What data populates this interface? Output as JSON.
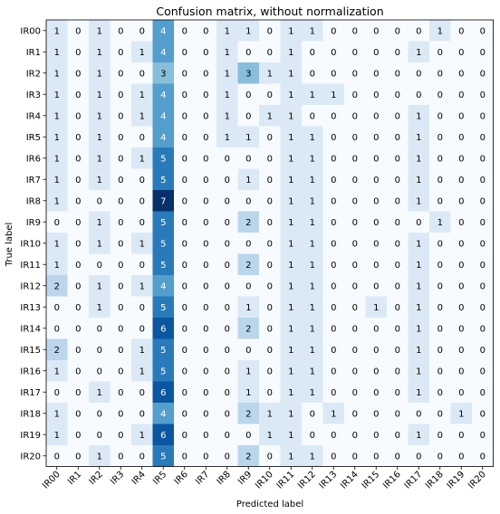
{
  "chart_data": {
    "type": "heatmap",
    "title": "Confusion matrix, without normalization",
    "xlabel": "Predicted label",
    "ylabel": "True label",
    "labels": [
      "IR00",
      "IR1",
      "IR2",
      "IR3",
      "IR4",
      "IR5",
      "IR6",
      "IR7",
      "IR8",
      "IR9",
      "IR10",
      "IR11",
      "IR12",
      "IR13",
      "IR14",
      "IR15",
      "IR16",
      "IR17",
      "IR18",
      "IR19",
      "IR20"
    ],
    "colormap": "Blues",
    "vmin": 0,
    "vmax": 7,
    "matrix": [
      [
        1,
        0,
        1,
        0,
        0,
        4,
        0,
        0,
        1,
        1,
        0,
        1,
        1,
        0,
        0,
        0,
        0,
        0,
        1,
        0,
        0
      ],
      [
        1,
        0,
        1,
        0,
        1,
        4,
        0,
        0,
        1,
        0,
        0,
        1,
        0,
        0,
        0,
        0,
        0,
        1,
        0,
        0,
        0
      ],
      [
        1,
        0,
        1,
        0,
        0,
        3,
        0,
        0,
        1,
        3,
        1,
        1,
        0,
        0,
        0,
        0,
        0,
        0,
        0,
        0,
        0
      ],
      [
        1,
        0,
        1,
        0,
        1,
        4,
        0,
        0,
        1,
        0,
        0,
        1,
        1,
        1,
        0,
        0,
        0,
        0,
        0,
        0,
        0
      ],
      [
        1,
        0,
        1,
        0,
        1,
        4,
        0,
        0,
        1,
        0,
        1,
        1,
        0,
        0,
        0,
        0,
        0,
        1,
        0,
        0,
        0
      ],
      [
        1,
        0,
        1,
        0,
        0,
        4,
        0,
        0,
        1,
        1,
        0,
        1,
        1,
        0,
        0,
        0,
        0,
        1,
        0,
        0,
        0
      ],
      [
        1,
        0,
        1,
        0,
        1,
        5,
        0,
        0,
        0,
        0,
        0,
        1,
        1,
        0,
        0,
        0,
        0,
        1,
        0,
        0,
        0
      ],
      [
        1,
        0,
        1,
        0,
        0,
        5,
        0,
        0,
        0,
        1,
        0,
        1,
        1,
        0,
        0,
        0,
        0,
        1,
        0,
        0,
        0
      ],
      [
        1,
        0,
        0,
        0,
        0,
        7,
        0,
        0,
        0,
        0,
        0,
        1,
        1,
        0,
        0,
        0,
        0,
        1,
        0,
        0,
        0
      ],
      [
        0,
        0,
        1,
        0,
        0,
        5,
        0,
        0,
        0,
        2,
        0,
        1,
        1,
        0,
        0,
        0,
        0,
        0,
        1,
        0,
        0
      ],
      [
        1,
        0,
        1,
        0,
        1,
        5,
        0,
        0,
        0,
        0,
        0,
        1,
        1,
        0,
        0,
        0,
        0,
        1,
        0,
        0,
        0
      ],
      [
        1,
        0,
        0,
        0,
        0,
        5,
        0,
        0,
        0,
        2,
        0,
        1,
        1,
        0,
        0,
        0,
        0,
        1,
        0,
        0,
        0
      ],
      [
        2,
        0,
        1,
        0,
        1,
        4,
        0,
        0,
        0,
        0,
        0,
        1,
        1,
        0,
        0,
        0,
        0,
        1,
        0,
        0,
        0
      ],
      [
        0,
        0,
        1,
        0,
        0,
        5,
        0,
        0,
        0,
        1,
        0,
        1,
        1,
        0,
        0,
        1,
        0,
        1,
        0,
        0,
        0
      ],
      [
        0,
        0,
        0,
        0,
        0,
        6,
        0,
        0,
        0,
        2,
        0,
        1,
        1,
        0,
        0,
        0,
        0,
        1,
        0,
        0,
        0
      ],
      [
        2,
        0,
        0,
        0,
        1,
        5,
        0,
        0,
        0,
        0,
        0,
        1,
        1,
        0,
        0,
        0,
        0,
        1,
        0,
        0,
        0
      ],
      [
        1,
        0,
        0,
        0,
        1,
        5,
        0,
        0,
        0,
        1,
        0,
        1,
        1,
        0,
        0,
        0,
        0,
        1,
        0,
        0,
        0
      ],
      [
        0,
        0,
        1,
        0,
        0,
        6,
        0,
        0,
        0,
        1,
        0,
        1,
        1,
        0,
        0,
        0,
        0,
        1,
        0,
        0,
        0
      ],
      [
        1,
        0,
        0,
        0,
        0,
        4,
        0,
        0,
        0,
        2,
        1,
        1,
        0,
        1,
        0,
        0,
        0,
        0,
        0,
        1,
        0
      ],
      [
        1,
        0,
        0,
        0,
        1,
        6,
        0,
        0,
        0,
        0,
        1,
        1,
        0,
        0,
        0,
        0,
        0,
        1,
        0,
        0,
        0
      ],
      [
        0,
        0,
        1,
        0,
        0,
        5,
        0,
        0,
        0,
        2,
        0,
        1,
        1,
        0,
        0,
        0,
        0,
        0,
        0,
        0,
        0
      ]
    ]
  }
}
